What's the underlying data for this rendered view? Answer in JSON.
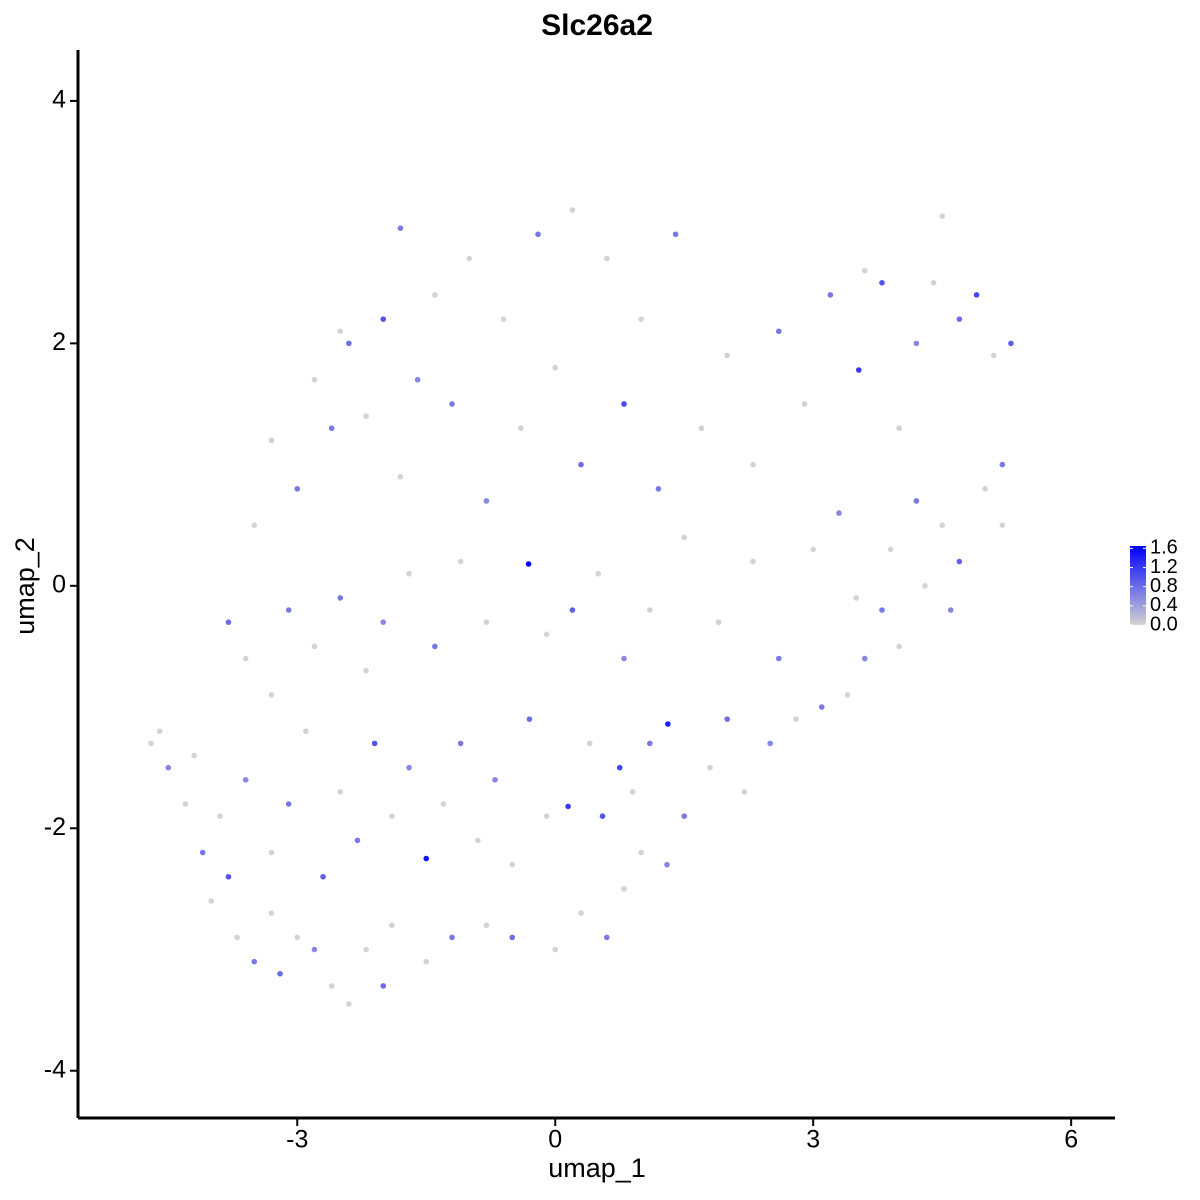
{
  "chart_data": {
    "type": "scatter",
    "title": "Slc26a2",
    "x_label": "umap_1",
    "y_label": "umap_2",
    "x": [
      -4.7,
      -4.6,
      -4.5,
      -4.3,
      -4.1,
      -4.0,
      -3.8,
      -3.7,
      -3.5,
      -3.3,
      -3.2,
      -3.0,
      -2.8,
      -2.6,
      -2.4,
      -2.2,
      -2.0,
      -1.9,
      -1.5,
      -1.2,
      -0.8,
      -0.5,
      0,
      0.3,
      0.6,
      0.8,
      1.0,
      1.3,
      -4.2,
      -3.9,
      -3.6,
      -3.3,
      -3.1,
      -2.9,
      -2.7,
      -2.5,
      -2.3,
      -2.1,
      -1.9,
      -1.7,
      -1.5,
      -1.3,
      -1.1,
      -0.9,
      -0.7,
      -0.5,
      -0.3,
      -0.1,
      0.15,
      0.4,
      0.55,
      0.75,
      0.9,
      1.1,
      1.31,
      1.5,
      1.8,
      2.0,
      2.2,
      2.5,
      2.8,
      3.1,
      3.4,
      3.6,
      3.8,
      4.0,
      4.3,
      4.6,
      -3.8,
      -3.6,
      -3.3,
      -3.1,
      -2.8,
      -2.5,
      -2.2,
      -2.0,
      -1.7,
      -1.4,
      -1.1,
      -0.8,
      -0.31,
      -0.1,
      0.2,
      0.5,
      0.8,
      1.1,
      1.5,
      1.9,
      2.3,
      2.6,
      3.0,
      3.3,
      3.5,
      3.9,
      4.2,
      4.5,
      4.7,
      5.0,
      5.2,
      -3.5,
      -3.3,
      -3.0,
      -2.8,
      -2.6,
      -2.4,
      -2.2,
      -2.0,
      -1.8,
      -1.6,
      -1.4,
      -1.2,
      -1.0,
      -0.8,
      -0.6,
      -0.4,
      -0.2,
      0,
      0.2,
      0.3,
      0.6,
      0.8,
      1.0,
      1.2,
      1.4,
      1.7,
      2.0,
      2.3,
      2.6,
      2.9,
      3.2,
      3.53,
      3.8,
      4.0,
      4.2,
      4.4,
      4.5,
      4.7,
      4.9,
      5.1,
      5.3,
      5.2,
      -1.8,
      -2.5,
      3.6
    ],
    "y": [
      -1.3,
      -1.2,
      -1.5,
      -1.8,
      -2.2,
      -2.6,
      -2.4,
      -2.9,
      -3.1,
      -2.7,
      -3.2,
      -2.9,
      -3.0,
      -3.3,
      -3.45,
      -3.0,
      -3.3,
      -2.8,
      -3.1,
      -2.9,
      -2.8,
      -2.9,
      -3.0,
      -2.7,
      -2.9,
      -2.5,
      -2.2,
      -2.3,
      -1.4,
      -1.9,
      -1.6,
      -2.2,
      -1.8,
      -1.2,
      -2.4,
      -1.7,
      -2.1,
      -1.3,
      -1.9,
      -1.5,
      -2.25,
      -1.8,
      -1.3,
      -2.1,
      -1.6,
      -2.3,
      -1.1,
      -1.9,
      -1.82,
      -1.3,
      -1.9,
      -1.5,
      -1.7,
      -1.3,
      -1.14,
      -1.9,
      -1.5,
      -1.1,
      -1.7,
      -1.3,
      -1.1,
      -1.0,
      -0.9,
      -0.6,
      -0.2,
      -0.5,
      0,
      -0.2,
      -0.3,
      -0.6,
      -0.9,
      -0.2,
      -0.5,
      -0.1,
      -0.7,
      -0.3,
      0.1,
      -0.5,
      0.2,
      -0.3,
      0.18,
      -0.4,
      -0.2,
      0.1,
      -0.6,
      -0.2,
      0.4,
      -0.3,
      0.2,
      -0.6,
      0.3,
      0.6,
      -0.1,
      0.3,
      0.7,
      0.5,
      0.2,
      0.8,
      0.5,
      0.5,
      1.2,
      0.8,
      1.7,
      1.3,
      2.0,
      1.4,
      2.2,
      0.9,
      1.7,
      2.4,
      1.5,
      2.7,
      0.7,
      2.2,
      1.3,
      2.9,
      1.8,
      3.1,
      1.0,
      2.7,
      1.5,
      2.2,
      0.8,
      2.9,
      1.3,
      1.9,
      1.0,
      2.1,
      1.5,
      2.4,
      1.78,
      2.5,
      1.3,
      2.0,
      2.5,
      3.05,
      2.2,
      2.4,
      1.9,
      2.0,
      1.0,
      2.95,
      2.1,
      2.6
    ],
    "values": [
      0,
      0,
      0.6,
      0,
      0.7,
      0,
      1.0,
      0,
      0.7,
      0,
      0.8,
      0,
      0.6,
      0,
      0,
      0,
      0.8,
      0,
      0,
      0.7,
      0,
      0.8,
      0,
      0,
      0.7,
      0,
      0,
      0.6,
      0,
      0,
      0.6,
      0,
      0.7,
      0,
      0.9,
      0,
      0.7,
      1.0,
      0,
      0.6,
      1.5,
      0,
      0.7,
      0,
      0.6,
      0,
      0.8,
      0,
      1.2,
      0,
      1.0,
      1.1,
      0,
      0.7,
      1.4,
      0.7,
      0,
      0.8,
      0,
      0.6,
      0,
      0.7,
      0,
      0.6,
      0.7,
      0,
      0,
      0.6,
      0.8,
      0,
      0,
      0.7,
      0,
      0.7,
      0,
      0.6,
      0,
      0.7,
      0,
      0,
      1.6,
      0,
      0.9,
      0,
      0.6,
      0,
      0,
      0,
      0,
      0.7,
      0,
      0.6,
      0,
      0,
      0.7,
      0,
      0.9,
      0,
      0,
      0,
      0,
      0.7,
      0,
      0.7,
      0.8,
      0,
      1.0,
      0,
      0.6,
      0,
      0.7,
      0,
      0.6,
      0,
      0,
      0.7,
      0,
      0,
      0.8,
      0,
      1.1,
      0,
      0.7,
      0.7,
      0,
      0,
      0,
      0.7,
      0,
      0.7,
      1.2,
      1.0,
      0,
      0.6,
      0,
      0,
      0.8,
      1.1,
      0,
      0.9,
      0.7,
      0.7,
      0,
      0
    ],
    "xlim": [
      -5.55,
      6.51
    ],
    "ylim": [
      -4.39,
      4.42
    ],
    "xticks": [
      -3,
      0,
      3,
      6
    ],
    "yticks": [
      -4,
      -2,
      0,
      2,
      4
    ],
    "color_low": "#d3d3d3",
    "color_high": "#0000ff",
    "colorbar_lim": [
      0,
      1.65
    ],
    "colorbar_ticks": [
      {
        "value": 0,
        "label": "0.0"
      },
      0.4,
      0.8,
      1.2,
      1.6
    ]
  }
}
